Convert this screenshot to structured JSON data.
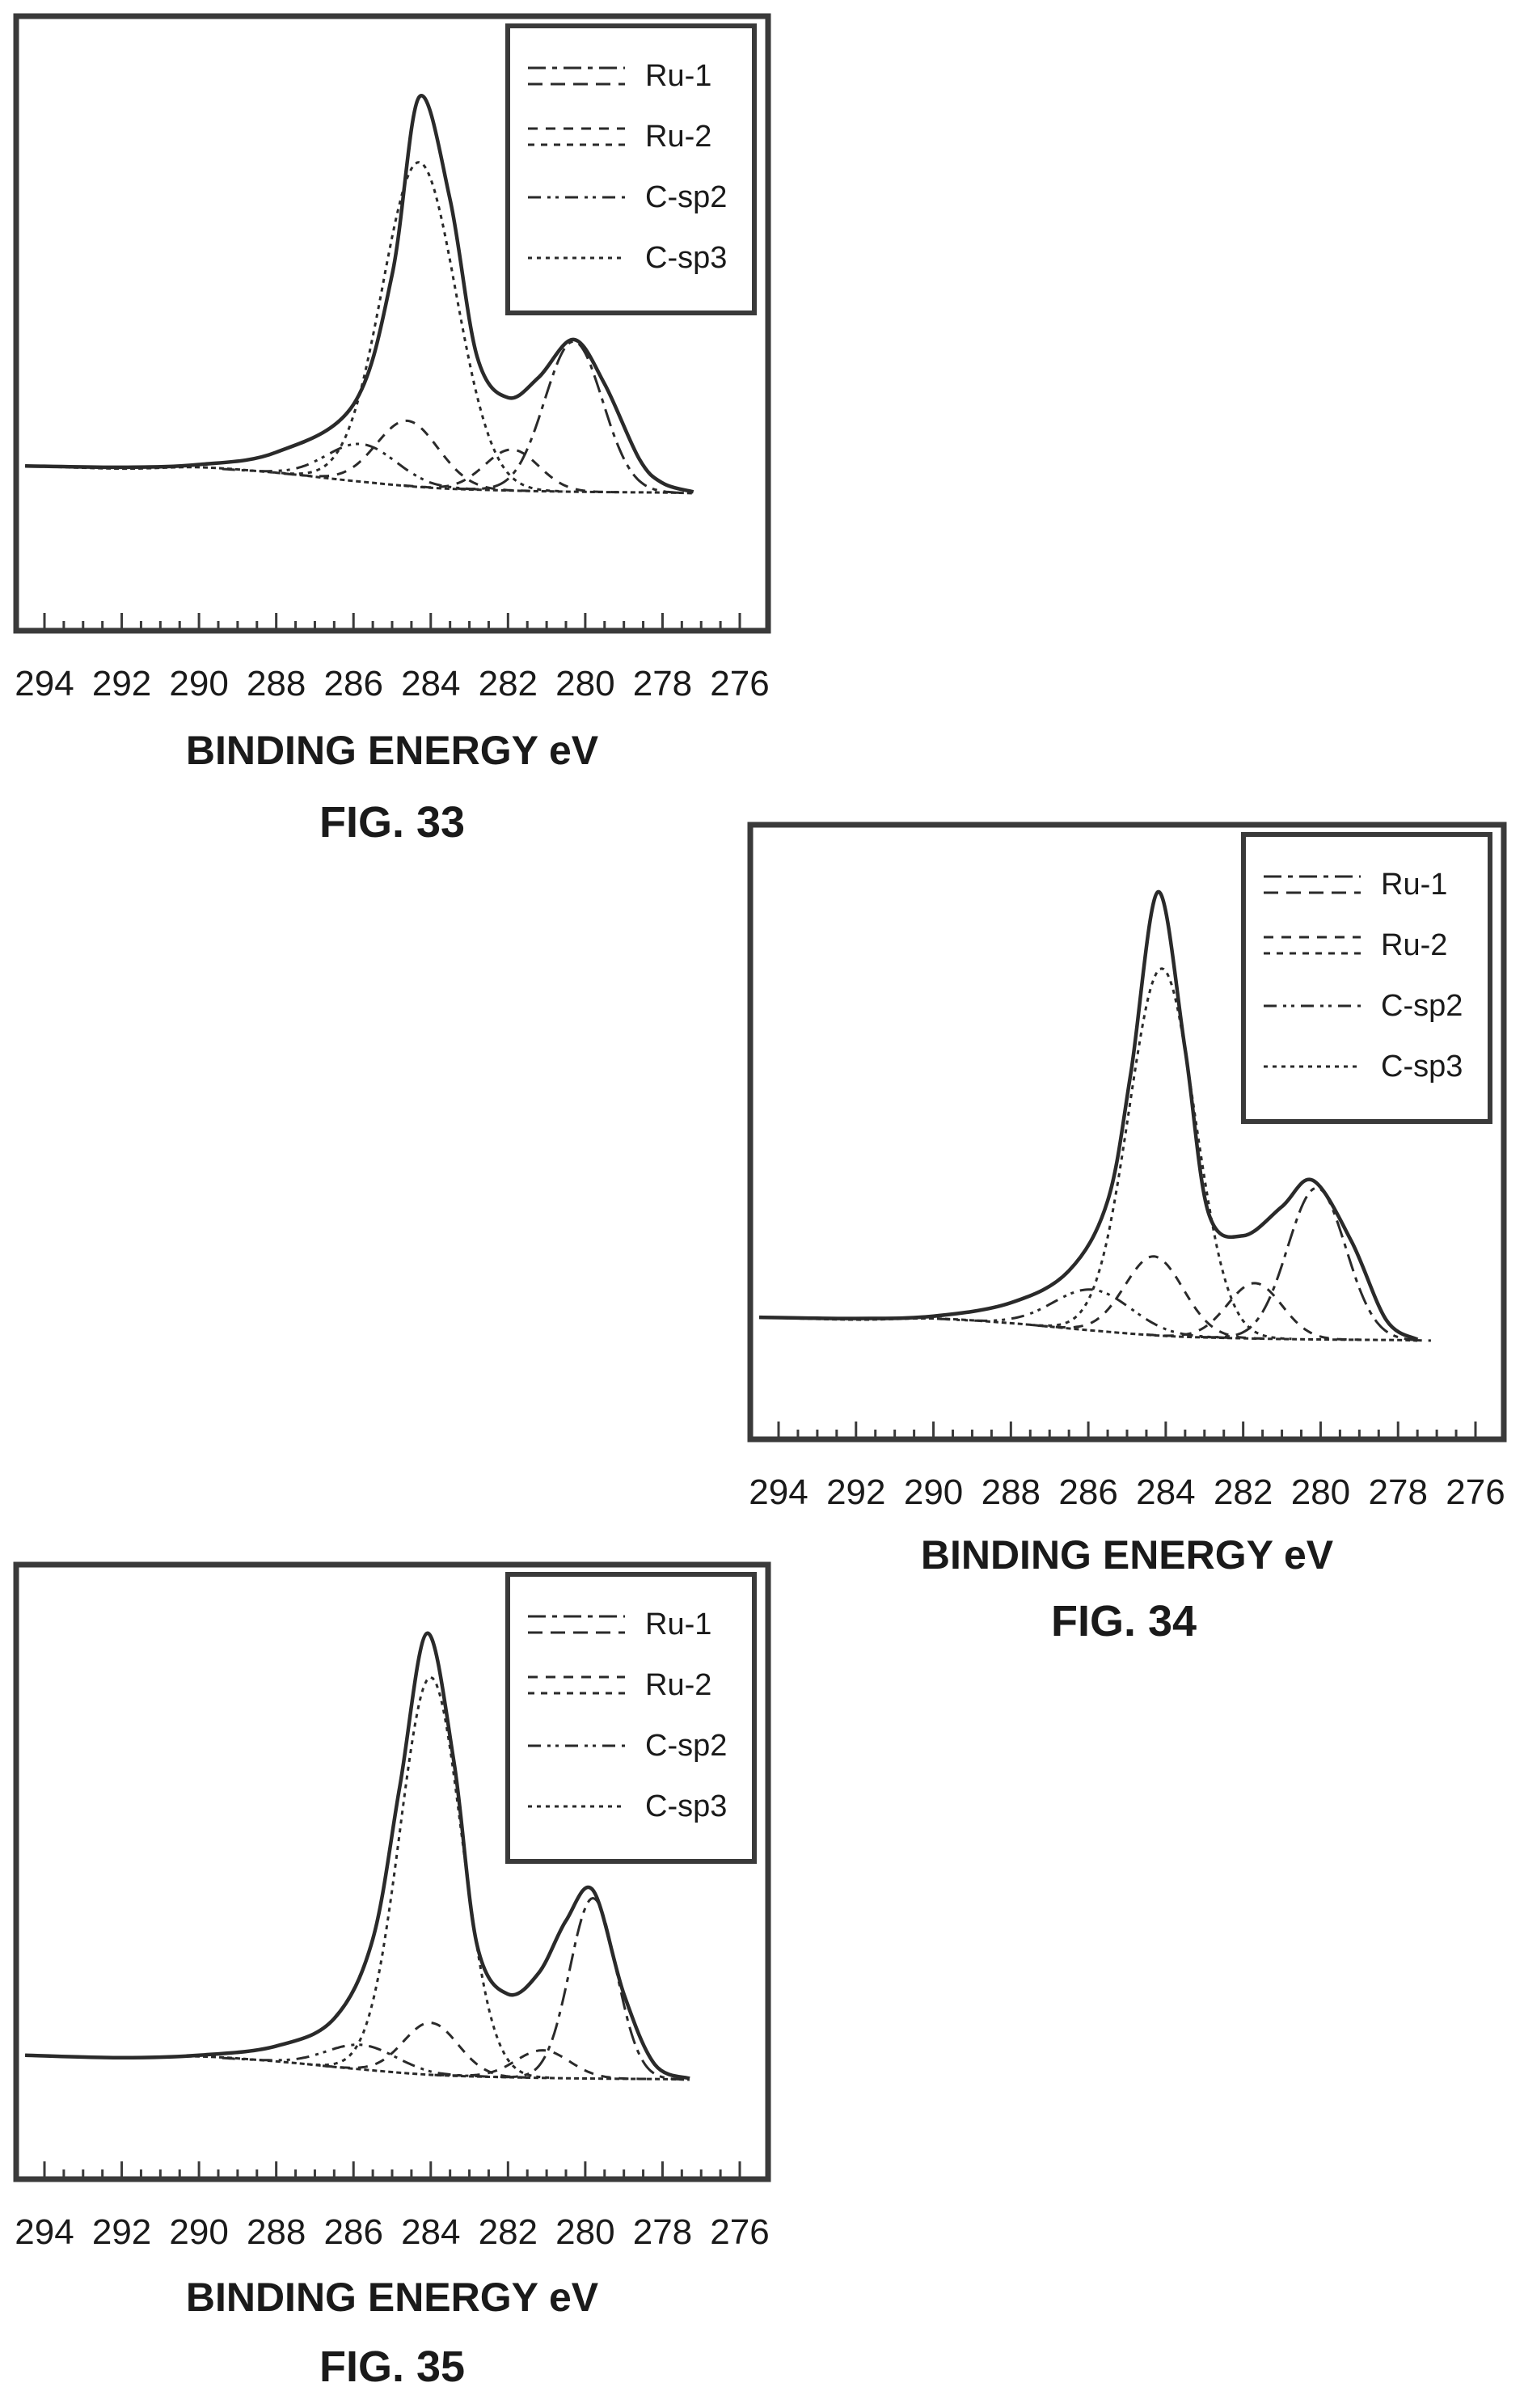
{
  "chart_data": [
    {
      "type": "line",
      "figure_label": "FIG. 33",
      "title": "",
      "xlabel": "BINDING ENERGY eV",
      "ylabel": "",
      "xlim": [
        294,
        276
      ],
      "ticks": [
        "294",
        "292",
        "290",
        "288",
        "286",
        "284",
        "282",
        "280",
        "278",
        "276"
      ],
      "legend": [
        "Ru-1",
        "Ru-2",
        "C-sp2",
        "C-sp3"
      ],
      "legend_position": "top-right",
      "grid": false,
      "components": [
        {
          "kind": "envelope",
          "x": [
            294.5,
            292,
            290,
            288,
            286,
            285,
            284.3,
            283.5,
            282.8,
            282,
            281.2,
            280.3,
            279.5,
            278.6,
            278,
            277.2
          ],
          "y": [
            0.4,
            0.38,
            0.42,
            0.6,
            1.3,
            3.2,
            5.8,
            4.3,
            2.0,
            1.4,
            1.7,
            2.25,
            1.6,
            0.5,
            0.15,
            0.02
          ]
        },
        {
          "kind": "background",
          "x": [
            294.5,
            292,
            290,
            288,
            286,
            284,
            282,
            280,
            278,
            277.2
          ],
          "y": [
            0.4,
            0.36,
            0.38,
            0.3,
            0.18,
            0.08,
            0.04,
            0.02,
            0.01,
            0.0
          ]
        },
        {
          "name": "C-sp3",
          "center": 284.3,
          "height": 4.75,
          "width": 0.95
        },
        {
          "name": "Ru-1",
          "center": 280.3,
          "height": 2.2,
          "width": 0.75
        },
        {
          "name": "Ru-2",
          "center": 284.6,
          "height": 0.95,
          "width": 0.8
        },
        {
          "name": "C-sp2",
          "center": 285.8,
          "height": 0.55,
          "width": 0.9
        },
        {
          "name": "Ru-2",
          "center": 281.9,
          "height": 0.6,
          "width": 0.7
        }
      ]
    },
    {
      "type": "line",
      "figure_label": "FIG. 34",
      "title": "",
      "xlabel": "BINDING ENERGY eV",
      "ylabel": "",
      "xlim": [
        294,
        276
      ],
      "ticks": [
        "294",
        "292",
        "290",
        "288",
        "286",
        "284",
        "282",
        "280",
        "278",
        "276"
      ],
      "legend": [
        "Ru-1",
        "Ru-2",
        "C-sp2",
        "C-sp3"
      ],
      "legend_position": "top-right",
      "grid": false,
      "components": [
        {
          "kind": "envelope",
          "x": [
            294.5,
            292,
            290,
            288,
            286.5,
            285.5,
            284.9,
            284.2,
            283.5,
            282.9,
            282,
            281,
            280.2,
            279.2,
            278.3,
            277.5
          ],
          "y": [
            0.4,
            0.38,
            0.42,
            0.65,
            1.2,
            2.4,
            4.6,
            7.7,
            5.0,
            2.2,
            1.8,
            2.3,
            2.75,
            1.7,
            0.35,
            0.02
          ]
        },
        {
          "kind": "background",
          "x": [
            294.5,
            292,
            290,
            288,
            286,
            284,
            282,
            280,
            278,
            277.5
          ],
          "y": [
            0.4,
            0.36,
            0.38,
            0.3,
            0.18,
            0.08,
            0.04,
            0.02,
            0.01,
            0.0
          ]
        },
        {
          "name": "C-sp3",
          "center": 284.1,
          "height": 6.3,
          "width": 0.85
        },
        {
          "name": "Ru-1",
          "center": 280.1,
          "height": 2.6,
          "width": 0.75
        },
        {
          "name": "Ru-2",
          "center": 284.3,
          "height": 1.35,
          "width": 0.75
        },
        {
          "name": "C-sp2",
          "center": 285.9,
          "height": 0.7,
          "width": 1.0
        },
        {
          "name": "Ru-2",
          "center": 281.7,
          "height": 0.95,
          "width": 0.7
        }
      ]
    },
    {
      "type": "line",
      "figure_label": "FIG. 35",
      "title": "",
      "xlabel": "BINDING ENERGY eV",
      "ylabel": "",
      "xlim": [
        294,
        276
      ],
      "ticks": [
        "294",
        "292",
        "290",
        "288",
        "286",
        "284",
        "282",
        "280",
        "278",
        "276"
      ],
      "legend": [
        "Ru-1",
        "Ru-2",
        "C-sp2",
        "C-sp3"
      ],
      "legend_position": "top-right",
      "grid": false,
      "components": [
        {
          "kind": "envelope",
          "x": [
            294.5,
            292,
            290,
            288,
            286.5,
            285.5,
            284.8,
            284.1,
            283.4,
            282.8,
            282,
            281.2,
            280.5,
            279.8,
            279,
            278.2,
            277.3
          ],
          "y": [
            0.4,
            0.36,
            0.4,
            0.55,
            1.0,
            2.3,
            4.8,
            7.3,
            5.2,
            2.2,
            1.4,
            1.75,
            2.6,
            3.1,
            1.4,
            0.25,
            0.02
          ]
        },
        {
          "kind": "background",
          "x": [
            294.5,
            292,
            290,
            288,
            286,
            284,
            282,
            280,
            278,
            277.3
          ],
          "y": [
            0.4,
            0.36,
            0.38,
            0.3,
            0.18,
            0.08,
            0.04,
            0.02,
            0.01,
            0.0
          ]
        },
        {
          "name": "C-sp3",
          "center": 284.0,
          "height": 6.5,
          "width": 0.8
        },
        {
          "name": "Ru-1",
          "center": 279.8,
          "height": 2.95,
          "width": 0.6
        },
        {
          "name": "Ru-2",
          "center": 284.0,
          "height": 0.85,
          "width": 0.7
        },
        {
          "name": "C-sp2",
          "center": 285.8,
          "height": 0.4,
          "width": 0.9
        },
        {
          "name": "Ru-2",
          "center": 281.1,
          "height": 0.45,
          "width": 0.7
        }
      ]
    }
  ],
  "styles": {
    "line_color": "#2a2a2a",
    "frame_color": "#3a3a3a",
    "dash": {
      "Ru-1": "22 8 6 8",
      "Ru-2": "12 10",
      "C-sp2": "16 8 4 6 4 8",
      "C-sp3": "5 6"
    }
  }
}
